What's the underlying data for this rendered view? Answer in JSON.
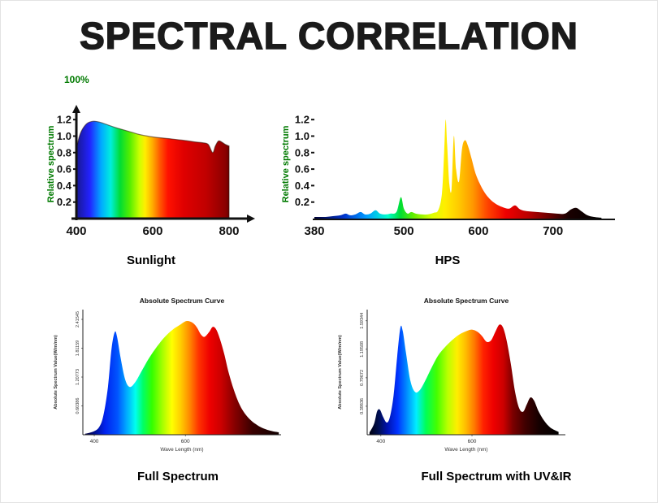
{
  "page": {
    "title": "SPECTRAL CORRELATION",
    "percent_label": "100%",
    "colors": {
      "accent_green": "#007a00",
      "axis_black": "#111111",
      "title_color": "#1b1b1b"
    }
  },
  "chart_data": [
    {
      "id": "sunlight",
      "type": "area",
      "caption": "Sunlight",
      "title": "",
      "ylabel": "Relative spectrum",
      "xlim": [
        400,
        800
      ],
      "ylim": [
        0,
        1.32
      ],
      "xticks": [
        "400",
        "600",
        "800"
      ],
      "yticks": [
        "0.2",
        "0.4",
        "0.6",
        "0.8",
        "1.0",
        "1.2"
      ],
      "points": [
        [
          400,
          0.84
        ],
        [
          408,
          1.0
        ],
        [
          418,
          1.1
        ],
        [
          430,
          1.16
        ],
        [
          445,
          1.18
        ],
        [
          460,
          1.17
        ],
        [
          480,
          1.14
        ],
        [
          505,
          1.1
        ],
        [
          535,
          1.06
        ],
        [
          565,
          1.02
        ],
        [
          600,
          0.99
        ],
        [
          640,
          0.97
        ],
        [
          680,
          0.95
        ],
        [
          710,
          0.93
        ],
        [
          730,
          0.92
        ],
        [
          745,
          0.9
        ],
        [
          757,
          0.8
        ],
        [
          764,
          0.88
        ],
        [
          772,
          0.94
        ],
        [
          780,
          0.93
        ],
        [
          790,
          0.9
        ],
        [
          800,
          0.88
        ]
      ],
      "gradient": [
        [
          400,
          "#181890"
        ],
        [
          435,
          "#2222ff"
        ],
        [
          465,
          "#00aaff"
        ],
        [
          490,
          "#00eedd"
        ],
        [
          515,
          "#00dd33"
        ],
        [
          540,
          "#55ee00"
        ],
        [
          565,
          "#ccff00"
        ],
        [
          580,
          "#ffee00"
        ],
        [
          600,
          "#ffaa00"
        ],
        [
          620,
          "#ff5500"
        ],
        [
          640,
          "#ff1100"
        ],
        [
          680,
          "#e00000"
        ],
        [
          740,
          "#c00000"
        ],
        [
          790,
          "#8b0000"
        ],
        [
          800,
          "#6b0000"
        ]
      ]
    },
    {
      "id": "hps",
      "type": "area",
      "caption": "HPS",
      "title": "",
      "ylabel": "Relative spectrum",
      "xlim": [
        380,
        770
      ],
      "ylim": [
        0,
        1.32
      ],
      "xticks": [
        "380",
        "500",
        "600",
        "700"
      ],
      "yticks": [
        "0.2",
        "0.4",
        "0.6",
        "0.8",
        "1.0",
        "1.2"
      ],
      "points": [
        [
          380,
          0.02
        ],
        [
          395,
          0.02
        ],
        [
          405,
          0.03
        ],
        [
          415,
          0.04
        ],
        [
          422,
          0.06
        ],
        [
          428,
          0.04
        ],
        [
          435,
          0.05
        ],
        [
          442,
          0.08
        ],
        [
          448,
          0.05
        ],
        [
          455,
          0.06
        ],
        [
          462,
          0.1
        ],
        [
          468,
          0.06
        ],
        [
          475,
          0.05
        ],
        [
          482,
          0.06
        ],
        [
          490,
          0.08
        ],
        [
          496,
          0.26
        ],
        [
          500,
          0.12
        ],
        [
          505,
          0.06
        ],
        [
          510,
          0.08
        ],
        [
          516,
          0.06
        ],
        [
          524,
          0.05
        ],
        [
          532,
          0.05
        ],
        [
          540,
          0.07
        ],
        [
          546,
          0.1
        ],
        [
          551,
          0.3
        ],
        [
          554,
          0.8
        ],
        [
          556,
          1.2
        ],
        [
          558,
          0.9
        ],
        [
          561,
          0.42
        ],
        [
          564,
          0.36
        ],
        [
          567,
          1.0
        ],
        [
          570,
          0.6
        ],
        [
          574,
          0.45
        ],
        [
          578,
          0.85
        ],
        [
          582,
          0.95
        ],
        [
          586,
          0.88
        ],
        [
          591,
          0.72
        ],
        [
          596,
          0.55
        ],
        [
          602,
          0.42
        ],
        [
          608,
          0.32
        ],
        [
          615,
          0.24
        ],
        [
          623,
          0.18
        ],
        [
          632,
          0.14
        ],
        [
          641,
          0.12
        ],
        [
          649,
          0.16
        ],
        [
          656,
          0.11
        ],
        [
          665,
          0.09
        ],
        [
          678,
          0.08
        ],
        [
          692,
          0.07
        ],
        [
          705,
          0.06
        ],
        [
          716,
          0.06
        ],
        [
          724,
          0.11
        ],
        [
          731,
          0.13
        ],
        [
          738,
          0.09
        ],
        [
          746,
          0.04
        ],
        [
          755,
          0.02
        ],
        [
          765,
          0.01
        ]
      ],
      "gradient": [
        [
          380,
          "#000033"
        ],
        [
          420,
          "#0033cc"
        ],
        [
          450,
          "#0099ff"
        ],
        [
          480,
          "#00ffcc"
        ],
        [
          497,
          "#00dd33"
        ],
        [
          515,
          "#66ee00"
        ],
        [
          540,
          "#ddff00"
        ],
        [
          557,
          "#ffee00"
        ],
        [
          575,
          "#ffcc00"
        ],
        [
          595,
          "#ff9900"
        ],
        [
          615,
          "#ff4400"
        ],
        [
          640,
          "#ee0000"
        ],
        [
          670,
          "#bb0000"
        ],
        [
          700,
          "#660000"
        ],
        [
          725,
          "#1a0000"
        ],
        [
          770,
          "#000000"
        ]
      ]
    },
    {
      "id": "full_spectrum",
      "type": "area",
      "caption": "Full Spectrum",
      "title": "Absolute Spectrum Curve",
      "ylabel": "Absolute Spectrum Value(W/m/nm)",
      "xlabel": "Wave Length (nm)",
      "xlim": [
        375,
        810
      ],
      "ylim": [
        0,
        2.62
      ],
      "xticks": [
        "400",
        "600"
      ],
      "yticks": [
        "0.60386",
        "1.20773",
        "1.81159",
        "2.41545"
      ],
      "points": [
        [
          380,
          0.02
        ],
        [
          396,
          0.06
        ],
        [
          410,
          0.15
        ],
        [
          420,
          0.4
        ],
        [
          430,
          1.0
        ],
        [
          438,
          1.8
        ],
        [
          445,
          2.15
        ],
        [
          450,
          2.05
        ],
        [
          458,
          1.6
        ],
        [
          468,
          1.15
        ],
        [
          478,
          1.0
        ],
        [
          490,
          1.1
        ],
        [
          505,
          1.35
        ],
        [
          520,
          1.6
        ],
        [
          538,
          1.85
        ],
        [
          555,
          2.05
        ],
        [
          572,
          2.2
        ],
        [
          588,
          2.3
        ],
        [
          602,
          2.38
        ],
        [
          615,
          2.35
        ],
        [
          625,
          2.25
        ],
        [
          634,
          2.1
        ],
        [
          642,
          2.05
        ],
        [
          652,
          2.15
        ],
        [
          660,
          2.26
        ],
        [
          668,
          2.2
        ],
        [
          676,
          2.0
        ],
        [
          685,
          1.7
        ],
        [
          695,
          1.3
        ],
        [
          706,
          0.95
        ],
        [
          718,
          0.65
        ],
        [
          730,
          0.45
        ],
        [
          744,
          0.3
        ],
        [
          758,
          0.2
        ],
        [
          772,
          0.13
        ],
        [
          788,
          0.08
        ],
        [
          805,
          0.05
        ]
      ],
      "gradient": [
        [
          380,
          "#000044"
        ],
        [
          420,
          "#0022ee"
        ],
        [
          448,
          "#0055ff"
        ],
        [
          468,
          "#00aaff"
        ],
        [
          488,
          "#00ffee"
        ],
        [
          505,
          "#00ff66"
        ],
        [
          525,
          "#33ff00"
        ],
        [
          550,
          "#aaff00"
        ],
        [
          570,
          "#ffff00"
        ],
        [
          590,
          "#ffcc00"
        ],
        [
          610,
          "#ff8800"
        ],
        [
          630,
          "#ff3300"
        ],
        [
          655,
          "#ee0000"
        ],
        [
          680,
          "#cc0000"
        ],
        [
          710,
          "#880000"
        ],
        [
          750,
          "#3a0000"
        ],
        [
          810,
          "#100000"
        ]
      ]
    },
    {
      "id": "full_spectrum_uv_ir",
      "type": "area",
      "caption": "Full Spectrum with UV&IR",
      "title": "Absolute Spectrum Curve",
      "ylabel": "Absolute Spectrum Value(W/m/nm)",
      "xlabel": "Wave Length (nm)",
      "xlim": [
        370,
        805
      ],
      "ylim": [
        0,
        1.75
      ],
      "xticks": [
        "400",
        "600"
      ],
      "yticks": [
        "0.39836",
        "0.79672",
        "1.19508",
        "1.59344"
      ],
      "points": [
        [
          375,
          0.03
        ],
        [
          385,
          0.15
        ],
        [
          392,
          0.33
        ],
        [
          398,
          0.35
        ],
        [
          405,
          0.25
        ],
        [
          413,
          0.17
        ],
        [
          420,
          0.25
        ],
        [
          428,
          0.55
        ],
        [
          436,
          1.1
        ],
        [
          443,
          1.5
        ],
        [
          448,
          1.45
        ],
        [
          455,
          1.15
        ],
        [
          465,
          0.75
        ],
        [
          475,
          0.6
        ],
        [
          485,
          0.62
        ],
        [
          497,
          0.75
        ],
        [
          510,
          0.92
        ],
        [
          525,
          1.1
        ],
        [
          540,
          1.22
        ],
        [
          556,
          1.32
        ],
        [
          572,
          1.4
        ],
        [
          588,
          1.45
        ],
        [
          600,
          1.47
        ],
        [
          612,
          1.44
        ],
        [
          622,
          1.38
        ],
        [
          632,
          1.3
        ],
        [
          642,
          1.32
        ],
        [
          652,
          1.45
        ],
        [
          660,
          1.54
        ],
        [
          668,
          1.5
        ],
        [
          676,
          1.32
        ],
        [
          685,
          1.0
        ],
        [
          694,
          0.62
        ],
        [
          703,
          0.38
        ],
        [
          712,
          0.32
        ],
        [
          720,
          0.42
        ],
        [
          728,
          0.52
        ],
        [
          736,
          0.48
        ],
        [
          746,
          0.33
        ],
        [
          758,
          0.2
        ],
        [
          772,
          0.1
        ],
        [
          790,
          0.04
        ]
      ],
      "gradient": [
        [
          370,
          "#000010"
        ],
        [
          392,
          "#001055"
        ],
        [
          410,
          "#0011aa"
        ],
        [
          435,
          "#0033ff"
        ],
        [
          455,
          "#0088ff"
        ],
        [
          478,
          "#00eeff"
        ],
        [
          500,
          "#00ff55"
        ],
        [
          525,
          "#44ff00"
        ],
        [
          550,
          "#bbff00"
        ],
        [
          572,
          "#ffee00"
        ],
        [
          592,
          "#ffbb00"
        ],
        [
          612,
          "#ff7700"
        ],
        [
          632,
          "#ff2200"
        ],
        [
          655,
          "#ee0000"
        ],
        [
          678,
          "#cc0000"
        ],
        [
          700,
          "#7a0000"
        ],
        [
          728,
          "#400000"
        ],
        [
          760,
          "#150000"
        ],
        [
          805,
          "#000000"
        ]
      ]
    }
  ]
}
